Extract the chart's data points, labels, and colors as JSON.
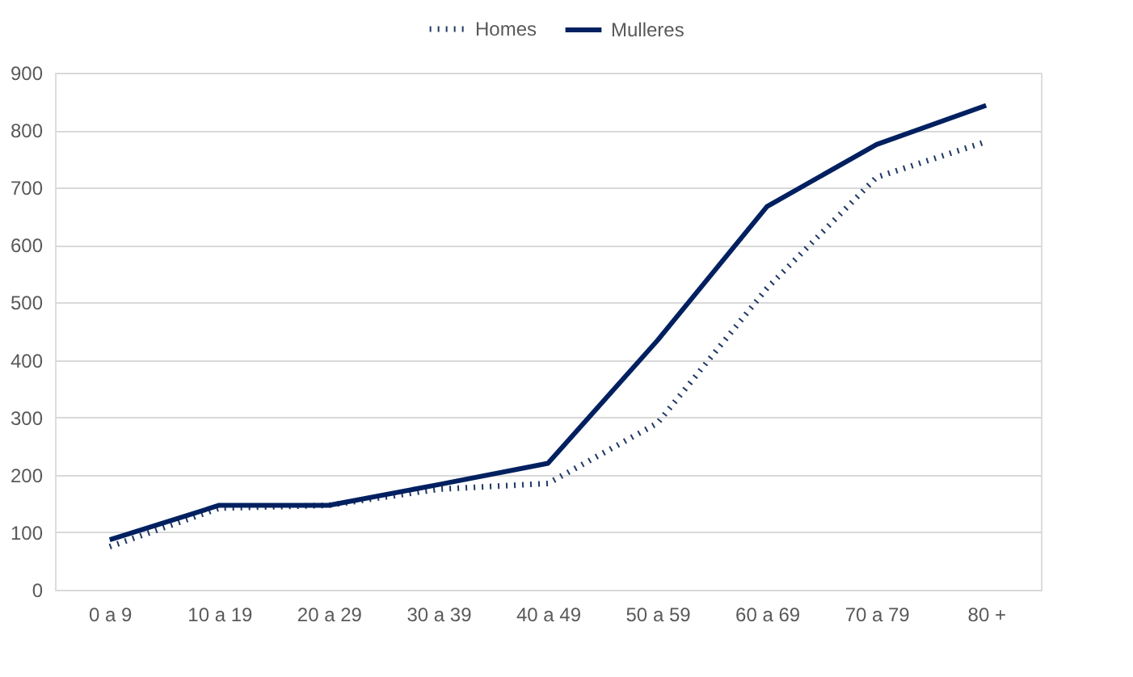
{
  "chart_data": {
    "type": "line",
    "categories": [
      "0 a 9",
      "10 a 19",
      "20 a 29",
      "30 a 39",
      "40 a 49",
      "50 a 59",
      "60 a 69",
      "70 a 79",
      "80 +"
    ],
    "series": [
      {
        "name": "Homes",
        "color": "#1f3864",
        "line_style": "dotted",
        "values": [
          75,
          142,
          147,
          175,
          185,
          290,
          525,
          718,
          780
        ]
      },
      {
        "name": "Mulleres",
        "color": "#002060",
        "line_style": "solid",
        "values": [
          87,
          147,
          147,
          183,
          220,
          434,
          667,
          775,
          843
        ]
      }
    ],
    "ylim": [
      0,
      900
    ],
    "yticks": [
      0,
      100,
      200,
      300,
      400,
      500,
      600,
      700,
      800,
      900
    ],
    "grid": "y",
    "legend": "top",
    "marker": "none"
  }
}
